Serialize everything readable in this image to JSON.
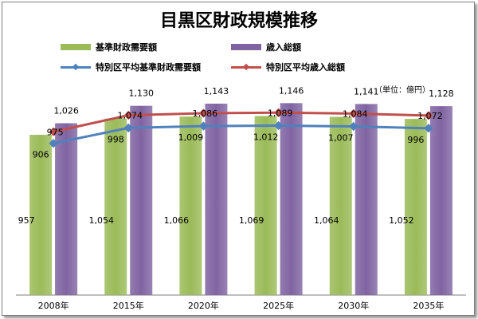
{
  "chart_data": {
    "type": "bar",
    "title": "目黒区財政規模推移",
    "unit_label": "（単位：億円）",
    "categories": [
      "2008年",
      "2015年",
      "2020年",
      "2025年",
      "2030年",
      "2035年"
    ],
    "ylim": [
      0,
      1200
    ],
    "grid": false,
    "legend_position": "top",
    "series": [
      {
        "name": "基準財政需要額",
        "kind": "bar",
        "color": "#9bbb59",
        "values": [
          957,
          1054,
          1066,
          1069,
          1064,
          1052
        ]
      },
      {
        "name": "歳入総額",
        "kind": "bar",
        "color": "#8064a2",
        "values": [
          1026,
          1130,
          1143,
          1146,
          1141,
          1128
        ]
      },
      {
        "name": "特別区平均基準財政需要額",
        "kind": "line",
        "color": "#4f81bd",
        "values": [
          906,
          998,
          1009,
          1012,
          1007,
          996
        ]
      },
      {
        "name": "特別区平均歳入総額",
        "kind": "line",
        "color": "#c0504d",
        "values": [
          975,
          1074,
          1086,
          1089,
          1084,
          1072
        ]
      }
    ]
  }
}
